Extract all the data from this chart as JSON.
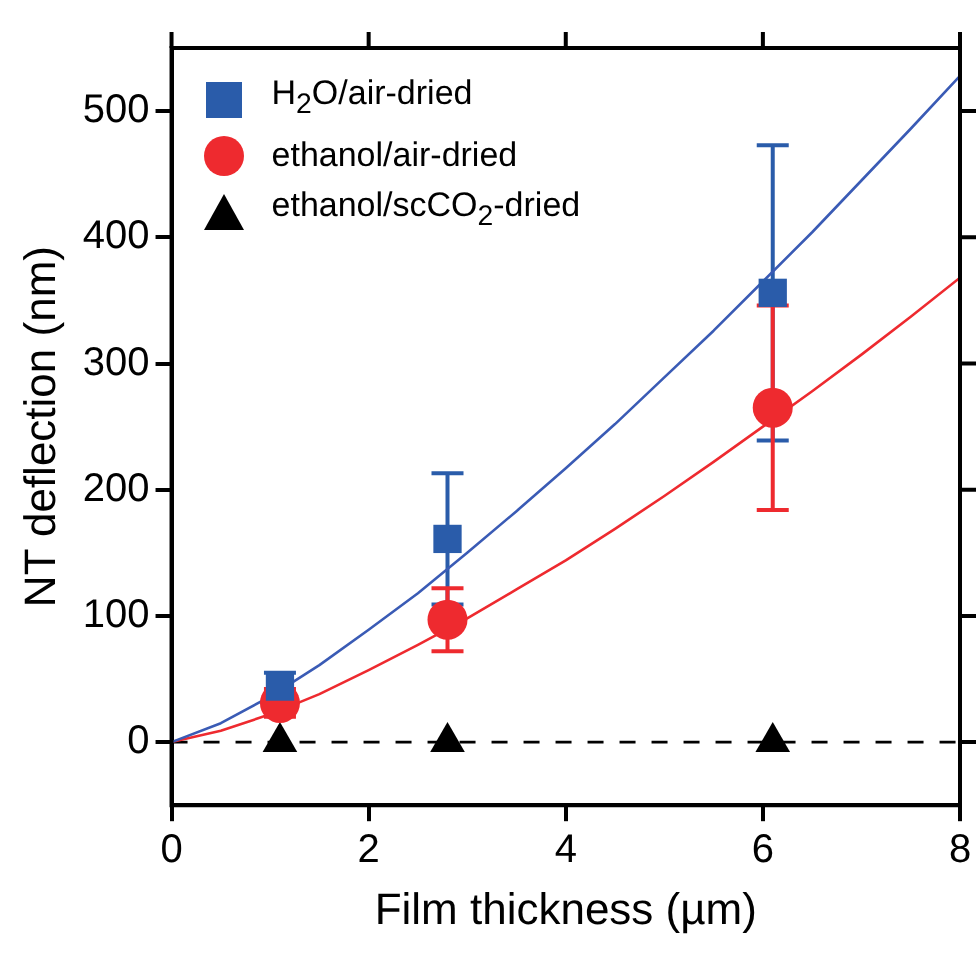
{
  "chart_data": {
    "type": "scatter",
    "xlabel": "Film thickness (µm)",
    "ylabel": "NT deflection (nm)",
    "xlim": [
      0,
      8
    ],
    "xticks": [
      0,
      2,
      4,
      6,
      8
    ],
    "ylim": [
      -50,
      550
    ],
    "yticks": [
      0,
      100,
      200,
      300,
      400,
      500
    ],
    "grid": false,
    "legend": "top left",
    "series": [
      {
        "name": "H$_{2}$O/air-dried",
        "color": "#2a5caa",
        "marker": "square",
        "x": [
          1.1,
          2.8,
          6.1
        ],
        "values": [
          44,
          161,
          356
        ],
        "errors": [
          11,
          52,
          117
        ]
      },
      {
        "name": "ethanol/air-dried",
        "color": "#ee2a2f",
        "marker": "circle",
        "x": [
          1.1,
          2.8,
          6.1
        ],
        "values": [
          31,
          97,
          265
        ],
        "errors": [
          11,
          25,
          81
        ]
      },
      {
        "name": "ethanol/scCO$_{2}$-dried",
        "color": "#000000",
        "marker": "triangle",
        "x": [
          1.1,
          2.8,
          6.1
        ],
        "values": [
          0,
          0,
          0
        ]
      },
      {
        "type": "line",
        "color": "#3a5bb5",
        "marker": "none",
        "x": [
          0,
          0.5,
          1,
          1.5,
          2,
          2.5,
          3,
          3.5,
          4,
          4.5,
          5,
          5.5,
          6,
          6.5,
          7,
          7.5,
          8
        ],
        "values": [
          0,
          15,
          36,
          61,
          89,
          118,
          150,
          183,
          217,
          252,
          289,
          326,
          365,
          404,
          445,
          486,
          528
        ]
      },
      {
        "type": "line",
        "color": "#ee2a2f",
        "marker": "none",
        "x": [
          0,
          0.5,
          1,
          1.5,
          2,
          2.5,
          3,
          3.5,
          4,
          4.5,
          5,
          5.5,
          6,
          6.5,
          7,
          7.5,
          8
        ],
        "values": [
          0,
          9,
          22,
          38,
          57,
          77,
          98,
          121,
          144,
          169,
          195,
          222,
          250,
          278,
          307,
          337,
          368
        ]
      }
    ],
    "ref_lines": [
      {
        "axis": "y",
        "value": 0,
        "color": "#000000",
        "line_style": "dashed"
      }
    ]
  }
}
